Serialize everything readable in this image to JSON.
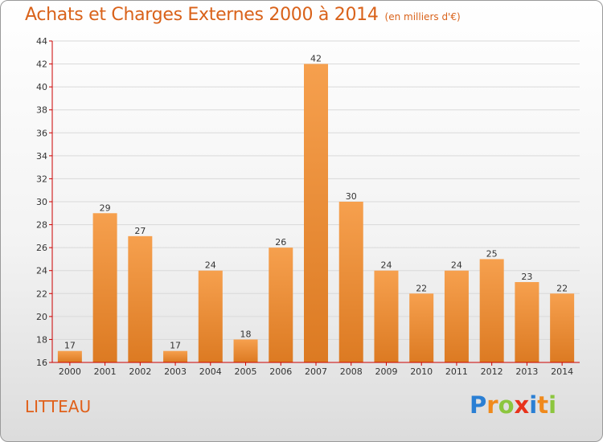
{
  "header": {
    "title": "Achats et Charges Externes 2000 à 2014",
    "subtitle": "(en milliers d'€)"
  },
  "footer": {
    "commune": "LITTEAU",
    "logo_letters": [
      {
        "ch": "P",
        "color": "#2a7fd4"
      },
      {
        "ch": "r",
        "color": "#f08a1c"
      },
      {
        "ch": "o",
        "color": "#8cc63e"
      },
      {
        "ch": "x",
        "color": "#e8331c"
      },
      {
        "ch": "i",
        "color": "#2a7fd4"
      },
      {
        "ch": "t",
        "color": "#f08a1c"
      },
      {
        "ch": "i",
        "color": "#8cc63e"
      }
    ]
  },
  "colors": {
    "bar_top": "#f6a04e",
    "bar_bottom": "#dc7a22",
    "axis": "#cc0000",
    "grid": "#d9d9d9",
    "text": "#333333",
    "accent": "#d9621a"
  },
  "chart_data": {
    "type": "bar",
    "categories": [
      "2000",
      "2001",
      "2002",
      "2003",
      "2004",
      "2005",
      "2006",
      "2007",
      "2008",
      "2009",
      "2010",
      "2011",
      "2012",
      "2013",
      "2014"
    ],
    "values": [
      17,
      29,
      27,
      17,
      24,
      18,
      26,
      42,
      30,
      24,
      22,
      24,
      25,
      23,
      22
    ],
    "data_labels": [
      "17",
      "29",
      "27",
      "17",
      "24",
      "18",
      "26",
      "42",
      "30",
      "24",
      "22",
      "24",
      "25",
      "23",
      "22"
    ],
    "ylim": [
      16,
      44
    ],
    "yticks": [
      16,
      18,
      20,
      22,
      24,
      26,
      28,
      30,
      32,
      34,
      36,
      38,
      40,
      42,
      44
    ],
    "grid": true,
    "title": "Achats et Charges Externes 2000 à 2014",
    "xlabel": "",
    "ylabel": ""
  }
}
